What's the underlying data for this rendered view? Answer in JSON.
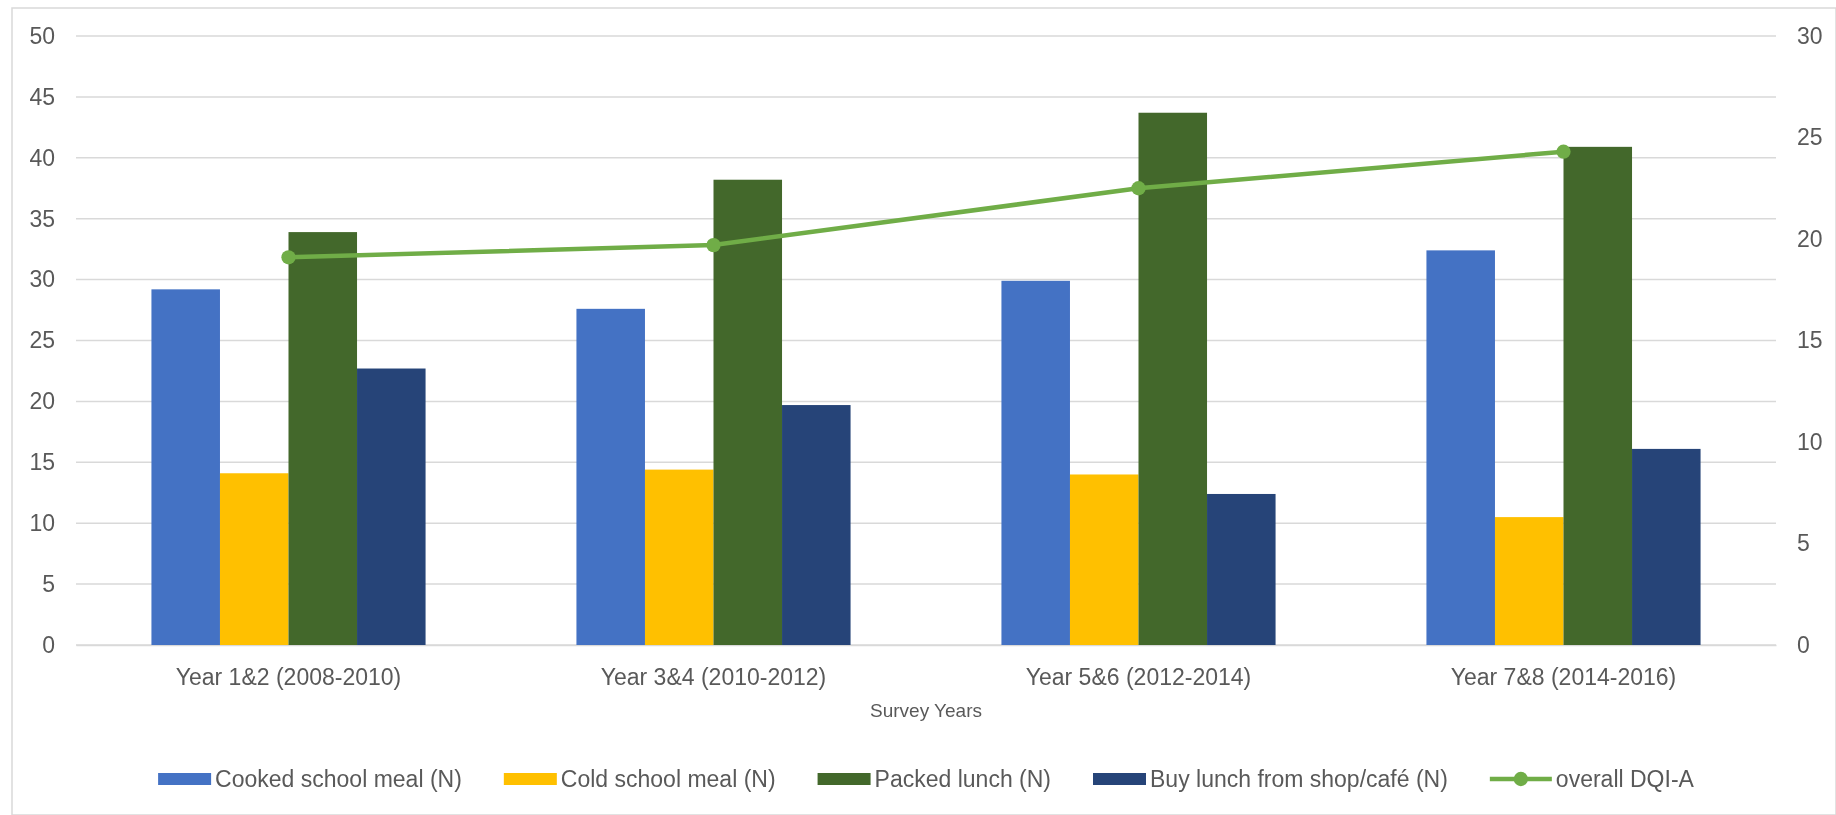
{
  "chart_data": {
    "type": "bar",
    "xlabel": "Survey Years",
    "categories": [
      "Year 1&2 (2008-2010)",
      "Year 3&4 (2010-2012)",
      "Year 5&6 (2012-2014)",
      "Year 7&8 (2014-2016)"
    ],
    "series": [
      {
        "name": "Cooked school meal (N)",
        "color": "#4472c4",
        "values": [
          29.2,
          27.6,
          29.9,
          32.4
        ]
      },
      {
        "name": "Cold school meal (N)",
        "color": "#ffc000",
        "values": [
          14.1,
          14.4,
          14.0,
          10.5
        ]
      },
      {
        "name": "Packed lunch (N)",
        "color": "#43682b",
        "values": [
          33.9,
          38.2,
          43.7,
          40.9
        ]
      },
      {
        "name": "Buy lunch from shop/café (N)",
        "color": "#264478",
        "values": [
          22.7,
          19.7,
          12.4,
          16.1
        ]
      },
      {
        "name": "overall DQI-A",
        "type": "line",
        "axis": "y2",
        "color": "#70ad47",
        "values": [
          19.1,
          19.7,
          22.5,
          24.3
        ]
      }
    ],
    "ylim": [
      0,
      50
    ],
    "yticks": [
      0,
      5,
      10,
      15,
      20,
      25,
      30,
      35,
      40,
      45,
      50
    ],
    "y2lim": [
      0,
      30
    ],
    "y2ticks": [
      0,
      5,
      10,
      15,
      20,
      25,
      30
    ],
    "grid": "y",
    "legend": "bottom",
    "marker": "circle"
  }
}
